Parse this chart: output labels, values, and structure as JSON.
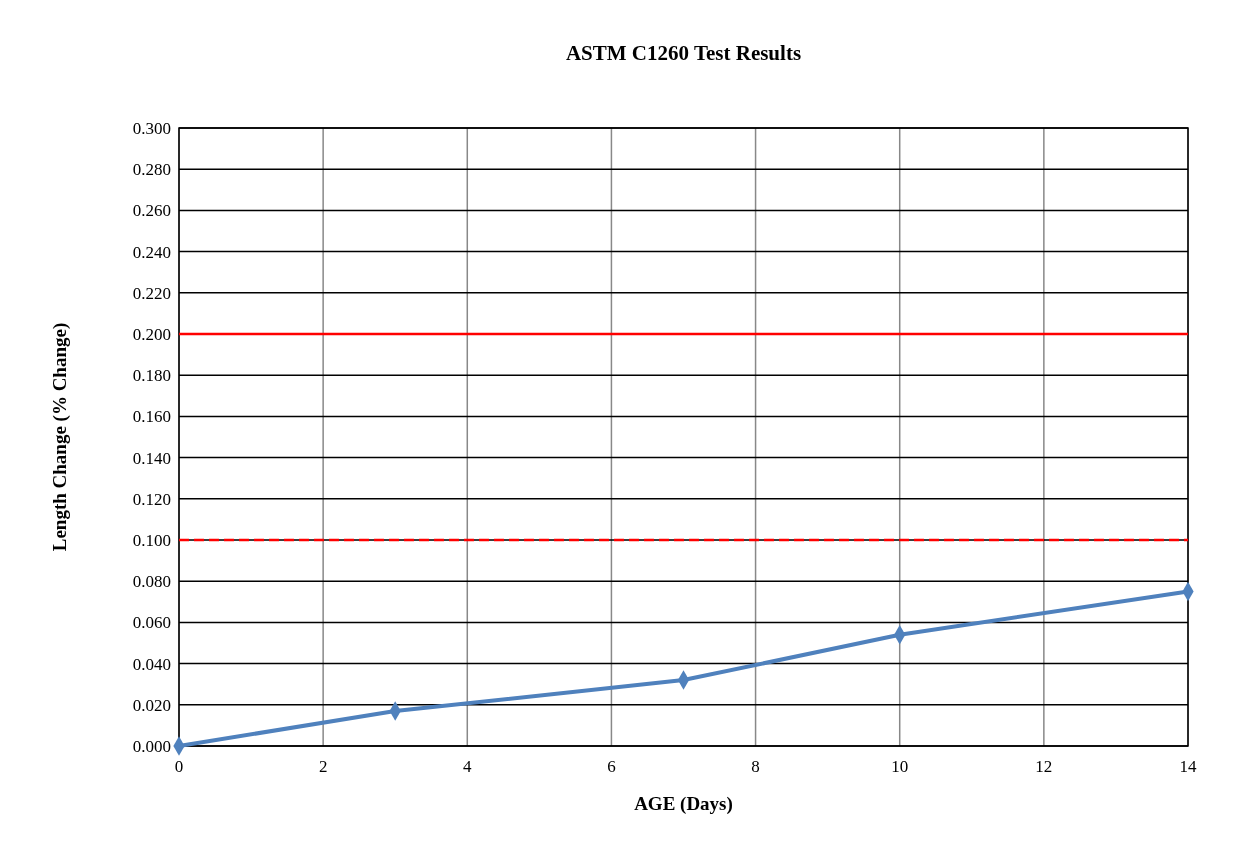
{
  "chart_data": {
    "type": "line",
    "title": "ASTM C1260 Test Results",
    "xlabel": "AGE (Days)",
    "ylabel": "Length Change (% Change)",
    "series": [
      {
        "x": [
          0,
          3,
          7,
          10,
          14
        ],
        "values": [
          0,
          0.017,
          0.032,
          0.054,
          0.075
        ],
        "color": "#4f81bd"
      }
    ],
    "xlim": [
      0,
      14
    ],
    "xticks": [
      0,
      2,
      4,
      6,
      8,
      10,
      12,
      14
    ],
    "ylim": [
      0,
      0.3
    ],
    "yticks": [
      {
        "value": 0,
        "label": "0.000"
      },
      {
        "value": 0.02,
        "label": "0.020"
      },
      {
        "value": 0.04,
        "label": "0.040"
      },
      {
        "value": 0.06,
        "label": "0.060"
      },
      {
        "value": 0.08,
        "label": "0.080"
      },
      {
        "value": 0.1,
        "label": "0.100"
      },
      {
        "value": 0.12,
        "label": "0.120"
      },
      {
        "value": 0.14,
        "label": "0.140"
      },
      {
        "value": 0.16,
        "label": "0.160"
      },
      {
        "value": 0.18,
        "label": "0.180"
      },
      {
        "value": 0.2,
        "label": "0.200"
      },
      {
        "value": 0.22,
        "label": "0.220"
      },
      {
        "value": 0.24,
        "label": "0.240"
      },
      {
        "value": 0.26,
        "label": "0.260"
      },
      {
        "value": 0.28,
        "label": "0.280"
      },
      {
        "value": 0.3,
        "label": "0.300"
      }
    ],
    "ref_lines": [
      {
        "axis": "y",
        "value": 0.2,
        "color": "#ff0000",
        "line_style": "solid"
      },
      {
        "axis": "y",
        "value": 0.1,
        "color": "#ff0000",
        "line_style": "dashed"
      }
    ],
    "grid": true,
    "marker": "diamond",
    "line_style": "solid"
  }
}
